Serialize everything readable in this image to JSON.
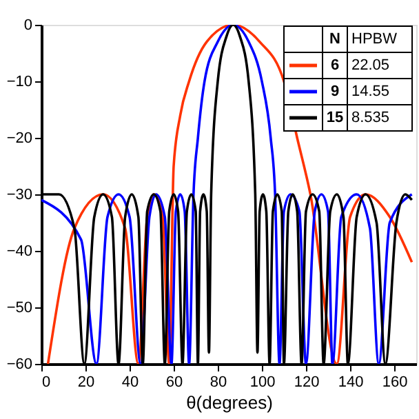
{
  "chart_data": {
    "type": "line",
    "xlabel": "θ(degrees)",
    "legend_title": "N",
    "annotations": [
      "HPBW",
      "22.05",
      "14.55",
      "8.535"
    ],
    "xlim": [
      0,
      170
    ],
    "xticks": [
      0,
      20,
      40,
      60,
      80,
      100,
      120,
      140,
      160
    ],
    "ylim": [
      -60,
      0
    ],
    "yticks": [
      -60,
      -50,
      -40,
      -30,
      -20,
      -10,
      0
    ],
    "grid": false,
    "legend": "top right",
    "marker": "none",
    "line_style": "solid",
    "series": [
      {
        "name": "6",
        "color": "#ff3300",
        "x": [
          3,
          15,
          28,
          38,
          44,
          48,
          51,
          55,
          58,
          60,
          63,
          67,
          75,
          87,
          99,
          110,
          116,
          122,
          134,
          140,
          147,
          158,
          168
        ],
        "values": [
          -60,
          -36,
          -30,
          -36,
          -60,
          -34,
          -30,
          -34,
          -60,
          -25,
          -16,
          -10,
          -3,
          0,
          -3,
          -10,
          -20,
          -30,
          -60,
          -34,
          -30,
          -34,
          -42
        ]
      },
      {
        "name": "9",
        "color": "#0000ff",
        "x": [
          0,
          18,
          25,
          30,
          35,
          40,
          45,
          49,
          52,
          56,
          59,
          61,
          63,
          65,
          67,
          69,
          71,
          74,
          80,
          87,
          94,
          100,
          104,
          106,
          108,
          110,
          113,
          117,
          120,
          124,
          127,
          130,
          132,
          136,
          143,
          149,
          153,
          158,
          168
        ],
        "values": [
          -31,
          -38,
          -60,
          -34,
          -30,
          -34,
          -60,
          -34,
          -30,
          -34,
          -60,
          -33,
          -30,
          -33,
          -60,
          -30,
          -20,
          -10,
          -3,
          0,
          -3,
          -10,
          -20,
          -30,
          -60,
          -33,
          -30,
          -33,
          -60,
          -33,
          -30,
          -33,
          -60,
          -34,
          -30,
          -36,
          -60,
          -35,
          -30
        ]
      },
      {
        "name": "15",
        "color": "#000000",
        "x": [
          0,
          8,
          15,
          19.5,
          24,
          28,
          32,
          35,
          38,
          41,
          44,
          46,
          48,
          51,
          54,
          56,
          58,
          60,
          62,
          64,
          66,
          68,
          70,
          71,
          72,
          73.5,
          75,
          76,
          77,
          80,
          84,
          87,
          90,
          94,
          97,
          98,
          99,
          100.5,
          102,
          103.5,
          105,
          107,
          109,
          110,
          112,
          114,
          116,
          118,
          120,
          123,
          126,
          128,
          131,
          134,
          137,
          139,
          143,
          147,
          152,
          156,
          161,
          165,
          168
        ],
        "values": [
          -30,
          -30,
          -36,
          -60,
          -34,
          -30,
          -34,
          -60,
          -34,
          -30,
          -34,
          -60,
          -33,
          -30,
          -33,
          -60,
          -33,
          -30,
          -33,
          -60,
          -33,
          -30,
          -33,
          -60,
          -33,
          -30,
          -33,
          -58,
          -30,
          -10,
          -2,
          0,
          -2,
          -10,
          -30,
          -58,
          -33,
          -30,
          -33,
          -60,
          -33,
          -30,
          -33,
          -60,
          -33,
          -30,
          -33,
          -60,
          -33,
          -30,
          -33,
          -60,
          -33,
          -30,
          -34,
          -60,
          -34,
          -30,
          -35,
          -60,
          -35,
          -30,
          -31
        ]
      }
    ]
  }
}
